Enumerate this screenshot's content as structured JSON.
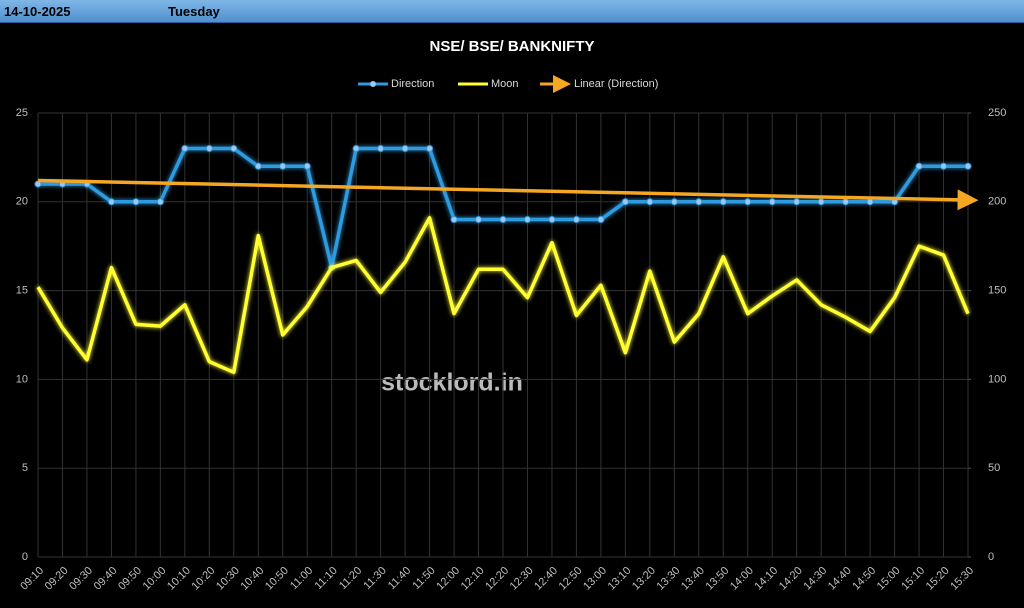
{
  "header": {
    "date": "14-10-2025",
    "day": "Tuesday"
  },
  "watermark": "stocklord.in",
  "chart_data": {
    "type": "line",
    "title": "NSE/ BSE/ BANKNIFTY",
    "categories": [
      "09:10",
      "09:20",
      "09:30",
      "09:40",
      "09:50",
      "10:00",
      "10:10",
      "10:20",
      "10:30",
      "10:40",
      "10:50",
      "11:00",
      "11:10",
      "11:20",
      "11:30",
      "11:40",
      "11:50",
      "12:00",
      "12:10",
      "12:20",
      "12:30",
      "12:40",
      "12:50",
      "13:00",
      "13:10",
      "13:20",
      "13:30",
      "13:40",
      "13:50",
      "14:00",
      "14:10",
      "14:20",
      "14:30",
      "14:40",
      "14:50",
      "15:00",
      "15:10",
      "15:20",
      "15:30"
    ],
    "series": [
      {
        "name": "Direction",
        "color": "#2e9be0",
        "axis": "y",
        "markers": true,
        "values": [
          21,
          21,
          21,
          20,
          20,
          20,
          23,
          23,
          23,
          22,
          22,
          22,
          16.3,
          23,
          23,
          23,
          23,
          19,
          19,
          19,
          19,
          19,
          19,
          19,
          20,
          20,
          20,
          20,
          20,
          20,
          20,
          20,
          20,
          20,
          20,
          20,
          22,
          22,
          22
        ]
      },
      {
        "name": "Moon",
        "color": "#ffff33",
        "axis": "y2",
        "markers": false,
        "values": [
          152,
          129,
          111,
          163,
          131,
          130,
          142,
          110,
          104,
          181,
          125,
          141,
          163,
          167,
          149,
          166,
          191,
          137,
          162,
          162,
          146,
          177,
          136,
          153,
          115,
          161,
          121,
          137,
          169,
          137,
          147,
          156,
          142,
          135,
          127,
          146,
          175,
          170,
          137
        ]
      }
    ],
    "trendline": {
      "name": "Linear (Direction)",
      "color": "#f5a623",
      "axis": "y",
      "values": [
        21.2,
        20.1
      ]
    },
    "ylim": [
      0,
      25
    ],
    "yticks": [
      0,
      5,
      10,
      15,
      20,
      25
    ],
    "y2lim": [
      0,
      250
    ],
    "y2ticks": [
      0,
      50,
      100,
      150,
      200,
      250
    ],
    "grid": true
  }
}
